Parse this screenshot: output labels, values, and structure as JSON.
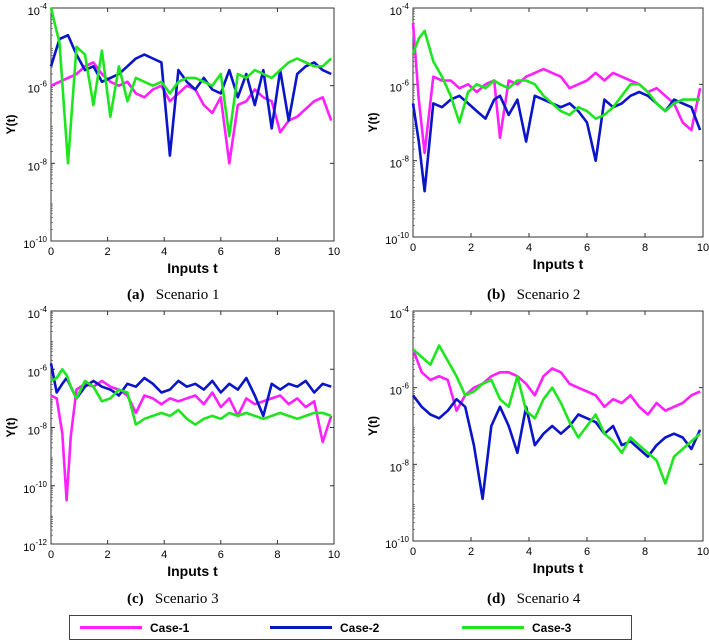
{
  "colors": {
    "case1": "#ff1fff",
    "case2": "#0a14c8",
    "case3": "#1ee61e"
  },
  "legend": [
    {
      "label": "Case-1",
      "color": "#ff1fff"
    },
    {
      "label": "Case-2",
      "color": "#0a14c8"
    },
    {
      "label": "Case-3",
      "color": "#1ee61e"
    }
  ],
  "captions": [
    {
      "letter": "(a)",
      "text": "Scenario 1"
    },
    {
      "letter": "(b)",
      "text": "Scenario 2"
    },
    {
      "letter": "(c)",
      "text": "Scenario 3"
    },
    {
      "letter": "(d)",
      "text": "Scenario 4"
    }
  ],
  "chart_data": [
    {
      "type": "line",
      "title": "Scenario 1",
      "xlabel": "Inputs t",
      "ylabel": "Y(t)",
      "yscale": "log",
      "xlim": [
        0,
        10
      ],
      "ylim_exp": [
        -10,
        -4
      ],
      "xticks": [
        "0",
        "2",
        "4",
        "6",
        "8",
        "10"
      ],
      "yticks": [
        {
          "base": "10",
          "exp": "-10"
        },
        {
          "base": "10",
          "exp": "-8"
        },
        {
          "base": "10",
          "exp": "-6"
        },
        {
          "base": "10",
          "exp": "-4"
        }
      ],
      "series": [
        {
          "name": "Case-1",
          "x": [
            0,
            0.3,
            0.6,
            0.9,
            1.2,
            1.5,
            1.8,
            2.1,
            2.4,
            2.7,
            3.0,
            3.3,
            3.6,
            3.9,
            4.2,
            4.5,
            4.8,
            5.1,
            5.4,
            5.7,
            6.0,
            6.3,
            6.6,
            6.9,
            7.2,
            7.5,
            7.8,
            8.1,
            8.4,
            8.7,
            9.0,
            9.3,
            9.6,
            9.9
          ],
          "y": [
            -6.0,
            -5.9,
            -5.8,
            -5.7,
            -5.5,
            -5.4,
            -5.7,
            -5.9,
            -6.0,
            -5.9,
            -6.2,
            -6.3,
            -6.1,
            -6.0,
            -6.4,
            -6.2,
            -6.0,
            -6.1,
            -6.5,
            -6.7,
            -6.3,
            -8.0,
            -6.5,
            -6.4,
            -6.1,
            -6.3,
            -6.4,
            -7.2,
            -6.9,
            -6.8,
            -6.6,
            -6.4,
            -6.3,
            -6.9
          ]
        },
        {
          "name": "Case-2",
          "x": [
            0,
            0.3,
            0.6,
            0.9,
            1.2,
            1.5,
            1.8,
            2.1,
            2.4,
            2.7,
            3.0,
            3.3,
            3.6,
            3.9,
            4.2,
            4.5,
            4.8,
            5.1,
            5.4,
            5.7,
            6.0,
            6.3,
            6.6,
            6.9,
            7.2,
            7.5,
            7.8,
            8.1,
            8.4,
            8.7,
            9.0,
            9.3,
            9.6,
            9.9
          ],
          "y": [
            -5.5,
            -4.8,
            -4.7,
            -5.2,
            -5.6,
            -5.5,
            -5.9,
            -5.8,
            -5.7,
            -5.5,
            -5.3,
            -5.2,
            -5.3,
            -5.4,
            -7.8,
            -5.6,
            -5.9,
            -6.1,
            -5.8,
            -6.1,
            -6.2,
            -5.6,
            -6.3,
            -5.7,
            -6.5,
            -5.6,
            -7.1,
            -5.6,
            -6.9,
            -5.7,
            -5.5,
            -5.4,
            -5.6,
            -5.7
          ]
        },
        {
          "name": "Case-3",
          "x": [
            0,
            0.3,
            0.6,
            0.9,
            1.2,
            1.5,
            1.8,
            2.1,
            2.4,
            2.7,
            3.0,
            3.3,
            3.6,
            3.9,
            4.2,
            4.5,
            4.8,
            5.1,
            5.4,
            5.7,
            6.0,
            6.3,
            6.6,
            6.9,
            7.2,
            7.5,
            7.8,
            8.1,
            8.4,
            8.7,
            9.0,
            9.3,
            9.6,
            9.9
          ],
          "y": [
            -4.0,
            -4.9,
            -8.0,
            -5.0,
            -5.2,
            -6.5,
            -5.1,
            -6.8,
            -5.5,
            -6.4,
            -5.8,
            -5.9,
            -6.0,
            -5.9,
            -6.2,
            -5.9,
            -5.8,
            -5.8,
            -5.9,
            -6.0,
            -5.7,
            -7.3,
            -5.7,
            -5.8,
            -5.6,
            -5.7,
            -5.8,
            -5.6,
            -5.4,
            -5.3,
            -5.4,
            -5.5,
            -5.5,
            -5.3
          ]
        }
      ]
    },
    {
      "type": "line",
      "title": "Scenario 2",
      "xlabel": "Inputs t",
      "ylabel": "Y(t)",
      "yscale": "log",
      "xlim": [
        0,
        10
      ],
      "ylim_exp": [
        -10,
        -4
      ],
      "xticks": [
        "0",
        "2",
        "4",
        "6",
        "8",
        "10"
      ],
      "yticks": [
        {
          "base": "10",
          "exp": "-10"
        },
        {
          "base": "10",
          "exp": "-8"
        },
        {
          "base": "10",
          "exp": "-6"
        },
        {
          "base": "10",
          "exp": "-4"
        }
      ],
      "series": [
        {
          "name": "Case-1",
          "x": [
            0,
            0.2,
            0.4,
            0.7,
            1.0,
            1.3,
            1.6,
            1.9,
            2.2,
            2.5,
            2.8,
            3.0,
            3.3,
            3.6,
            3.9,
            4.2,
            4.5,
            4.8,
            5.1,
            5.4,
            5.7,
            6.0,
            6.3,
            6.6,
            6.9,
            7.2,
            7.5,
            7.8,
            8.1,
            8.4,
            8.7,
            9.0,
            9.3,
            9.6,
            9.9
          ],
          "y": [
            -4.4,
            -6.4,
            -7.8,
            -5.8,
            -5.9,
            -5.9,
            -6.1,
            -6.0,
            -6.2,
            -6.0,
            -5.9,
            -7.4,
            -5.9,
            -6.0,
            -5.8,
            -5.7,
            -5.6,
            -5.7,
            -5.8,
            -6.1,
            -6.0,
            -5.9,
            -5.7,
            -5.9,
            -5.7,
            -5.8,
            -5.9,
            -6.0,
            -6.2,
            -6.1,
            -6.3,
            -6.5,
            -7.0,
            -7.2,
            -6.1
          ]
        },
        {
          "name": "Case-2",
          "x": [
            0,
            0.2,
            0.4,
            0.7,
            1.0,
            1.3,
            1.6,
            1.9,
            2.2,
            2.5,
            2.8,
            3.0,
            3.3,
            3.6,
            3.9,
            4.2,
            4.5,
            4.8,
            5.1,
            5.4,
            5.7,
            6.0,
            6.3,
            6.6,
            6.9,
            7.2,
            7.5,
            7.8,
            8.1,
            8.4,
            8.7,
            9.0,
            9.3,
            9.6,
            9.9
          ],
          "y": [
            -6.5,
            -7.5,
            -8.8,
            -6.5,
            -6.6,
            -6.4,
            -6.3,
            -6.5,
            -6.7,
            -6.9,
            -6.4,
            -6.3,
            -6.8,
            -6.4,
            -7.5,
            -6.3,
            -6.4,
            -6.5,
            -6.6,
            -6.5,
            -6.7,
            -7.0,
            -8.0,
            -6.4,
            -6.6,
            -6.5,
            -6.3,
            -6.2,
            -6.3,
            -6.5,
            -6.7,
            -6.4,
            -6.5,
            -6.6,
            -7.2
          ]
        },
        {
          "name": "Case-3",
          "x": [
            0,
            0.2,
            0.4,
            0.7,
            1.0,
            1.3,
            1.6,
            1.9,
            2.2,
            2.5,
            2.8,
            3.0,
            3.3,
            3.6,
            3.9,
            4.2,
            4.5,
            4.8,
            5.1,
            5.4,
            5.7,
            6.0,
            6.3,
            6.6,
            6.9,
            7.2,
            7.5,
            7.8,
            8.1,
            8.4,
            8.7,
            9.0,
            9.3,
            9.6,
            9.9
          ],
          "y": [
            -5.2,
            -4.8,
            -4.6,
            -5.4,
            -5.8,
            -6.3,
            -7.0,
            -6.2,
            -6.0,
            -6.1,
            -5.9,
            -6.0,
            -6.1,
            -5.9,
            -5.9,
            -6.0,
            -6.3,
            -6.5,
            -6.7,
            -6.8,
            -6.6,
            -6.7,
            -6.9,
            -6.8,
            -6.6,
            -6.3,
            -6.0,
            -6.0,
            -6.2,
            -6.5,
            -6.7,
            -6.5,
            -6.4,
            -6.4,
            -6.4
          ]
        }
      ]
    },
    {
      "type": "line",
      "title": "Scenario 3",
      "xlabel": "Inputs t",
      "ylabel": "Y(t)",
      "yscale": "log",
      "xlim": [
        0,
        10
      ],
      "ylim_exp": [
        -12,
        -4
      ],
      "xticks": [
        "0",
        "2",
        "4",
        "6",
        "8",
        "10"
      ],
      "yticks": [
        {
          "base": "10",
          "exp": "-12"
        },
        {
          "base": "10",
          "exp": "-10"
        },
        {
          "base": "10",
          "exp": "-8"
        },
        {
          "base": "10",
          "exp": "-6"
        },
        {
          "base": "10",
          "exp": "-4"
        }
      ],
      "series": [
        {
          "name": "Case-1",
          "x": [
            0,
            0.2,
            0.4,
            0.55,
            0.7,
            0.9,
            1.2,
            1.5,
            1.8,
            2.1,
            2.4,
            2.7,
            3.0,
            3.3,
            3.6,
            3.9,
            4.2,
            4.5,
            4.8,
            5.1,
            5.4,
            5.7,
            6.0,
            6.3,
            6.6,
            6.9,
            7.2,
            7.5,
            7.8,
            8.1,
            8.4,
            8.7,
            9.0,
            9.3,
            9.6,
            9.9
          ],
          "y": [
            -6.9,
            -7.0,
            -8.2,
            -10.5,
            -8.3,
            -6.7,
            -6.5,
            -6.6,
            -6.4,
            -6.6,
            -6.7,
            -6.9,
            -7.5,
            -6.9,
            -7.0,
            -7.2,
            -7.0,
            -7.1,
            -7.0,
            -6.9,
            -7.2,
            -6.8,
            -7.3,
            -7.0,
            -7.6,
            -7.0,
            -7.2,
            -7.1,
            -7.0,
            -6.9,
            -7.2,
            -7.0,
            -7.3,
            -7.1,
            -8.5,
            -7.6
          ]
        },
        {
          "name": "Case-2",
          "x": [
            0,
            0.2,
            0.4,
            0.55,
            0.7,
            0.9,
            1.2,
            1.5,
            1.8,
            2.1,
            2.4,
            2.7,
            3.0,
            3.3,
            3.6,
            3.9,
            4.2,
            4.5,
            4.8,
            5.1,
            5.4,
            5.7,
            6.0,
            6.3,
            6.6,
            6.9,
            7.2,
            7.5,
            7.8,
            8.1,
            8.4,
            8.7,
            9.0,
            9.3,
            9.6,
            9.9
          ],
          "y": [
            -5.8,
            -6.8,
            -6.5,
            -6.3,
            -6.6,
            -7.0,
            -6.6,
            -6.4,
            -6.6,
            -6.7,
            -6.9,
            -6.5,
            -6.6,
            -6.3,
            -6.5,
            -6.8,
            -6.7,
            -6.4,
            -6.6,
            -6.5,
            -6.7,
            -6.4,
            -6.8,
            -6.5,
            -6.7,
            -6.3,
            -6.9,
            -7.6,
            -6.5,
            -6.7,
            -6.5,
            -6.6,
            -6.4,
            -6.8,
            -6.5,
            -6.6
          ]
        },
        {
          "name": "Case-3",
          "x": [
            0,
            0.2,
            0.4,
            0.55,
            0.7,
            0.9,
            1.2,
            1.5,
            1.8,
            2.1,
            2.4,
            2.7,
            3.0,
            3.3,
            3.6,
            3.9,
            4.2,
            4.5,
            4.8,
            5.1,
            5.4,
            5.7,
            6.0,
            6.3,
            6.6,
            6.9,
            7.2,
            7.5,
            7.8,
            8.1,
            8.4,
            8.7,
            9.0,
            9.3,
            9.6,
            9.9
          ],
          "y": [
            -6.4,
            -6.3,
            -6.0,
            -6.2,
            -6.6,
            -7.0,
            -6.4,
            -6.6,
            -7.1,
            -7.0,
            -6.7,
            -6.8,
            -7.9,
            -7.7,
            -7.6,
            -7.5,
            -7.6,
            -7.4,
            -7.7,
            -7.9,
            -7.7,
            -7.6,
            -7.7,
            -7.5,
            -7.6,
            -7.5,
            -7.6,
            -7.7,
            -7.6,
            -7.5,
            -7.6,
            -7.7,
            -7.6,
            -7.5,
            -7.5,
            -7.6
          ]
        }
      ]
    },
    {
      "type": "line",
      "title": "Scenario 4",
      "xlabel": "Inputs t",
      "ylabel": "Y(t)",
      "yscale": "log",
      "xlim": [
        0,
        10
      ],
      "ylim_exp": [
        -10,
        -4
      ],
      "xticks": [
        "0",
        "2",
        "4",
        "6",
        "8",
        "10"
      ],
      "yticks": [
        {
          "base": "10",
          "exp": "-10"
        },
        {
          "base": "10",
          "exp": "-8"
        },
        {
          "base": "10",
          "exp": "-6"
        },
        {
          "base": "10",
          "exp": "-4"
        }
      ],
      "series": [
        {
          "name": "Case-1",
          "x": [
            0,
            0.3,
            0.6,
            0.9,
            1.2,
            1.5,
            1.8,
            2.1,
            2.4,
            2.7,
            3.0,
            3.3,
            3.6,
            3.9,
            4.2,
            4.5,
            4.8,
            5.1,
            5.4,
            5.7,
            6.0,
            6.3,
            6.6,
            6.9,
            7.2,
            7.5,
            7.8,
            8.1,
            8.4,
            8.7,
            9.0,
            9.3,
            9.6,
            9.9
          ],
          "y": [
            -5.0,
            -5.6,
            -5.8,
            -5.7,
            -5.8,
            -6.6,
            -6.2,
            -6.0,
            -5.9,
            -5.7,
            -5.6,
            -5.6,
            -5.7,
            -5.9,
            -6.2,
            -5.7,
            -5.5,
            -5.6,
            -5.9,
            -6.0,
            -6.1,
            -6.2,
            -6.5,
            -6.3,
            -6.4,
            -6.2,
            -6.5,
            -6.7,
            -6.4,
            -6.6,
            -6.5,
            -6.4,
            -6.2,
            -6.1
          ]
        },
        {
          "name": "Case-2",
          "x": [
            0,
            0.3,
            0.6,
            0.9,
            1.2,
            1.5,
            1.8,
            2.1,
            2.4,
            2.7,
            3.0,
            3.3,
            3.6,
            3.9,
            4.2,
            4.5,
            4.8,
            5.1,
            5.4,
            5.7,
            6.0,
            6.3,
            6.6,
            6.9,
            7.2,
            7.5,
            7.8,
            8.1,
            8.4,
            8.7,
            9.0,
            9.3,
            9.6,
            9.9
          ],
          "y": [
            -6.2,
            -6.5,
            -6.7,
            -6.8,
            -6.6,
            -6.3,
            -6.5,
            -7.5,
            -8.9,
            -7.0,
            -6.5,
            -7.0,
            -7.7,
            -6.5,
            -7.5,
            -7.2,
            -7.0,
            -7.2,
            -7.0,
            -6.7,
            -6.8,
            -6.9,
            -7.2,
            -7.0,
            -7.5,
            -7.4,
            -7.6,
            -7.8,
            -7.5,
            -7.3,
            -7.2,
            -7.3,
            -7.6,
            -7.1
          ]
        },
        {
          "name": "Case-3",
          "x": [
            0,
            0.3,
            0.6,
            0.9,
            1.2,
            1.5,
            1.8,
            2.1,
            2.4,
            2.7,
            3.0,
            3.3,
            3.6,
            3.9,
            4.2,
            4.5,
            4.8,
            5.1,
            5.4,
            5.7,
            6.0,
            6.3,
            6.6,
            6.9,
            7.2,
            7.5,
            7.8,
            8.1,
            8.4,
            8.7,
            9.0,
            9.3,
            9.6,
            9.9
          ],
          "y": [
            -5.0,
            -5.2,
            -5.4,
            -4.9,
            -5.3,
            -5.7,
            -6.2,
            -6.1,
            -5.9,
            -5.8,
            -6.3,
            -6.5,
            -5.7,
            -6.6,
            -6.8,
            -6.3,
            -6.0,
            -6.4,
            -6.9,
            -7.3,
            -7.0,
            -6.7,
            -7.2,
            -7.4,
            -7.7,
            -7.3,
            -7.5,
            -7.7,
            -7.9,
            -8.5,
            -7.8,
            -7.6,
            -7.4,
            -7.2
          ]
        }
      ]
    }
  ]
}
